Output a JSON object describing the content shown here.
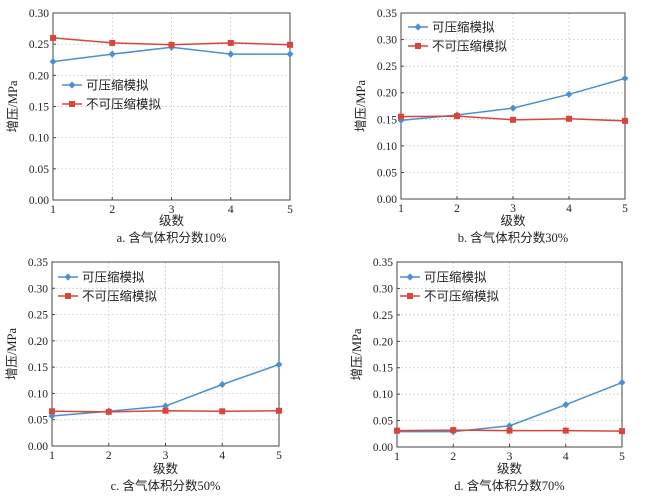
{
  "chart_data": [
    {
      "type": "line",
      "caption": "a. 含气体积分数10%",
      "xlabel": "级数",
      "ylabel": "增压/MPa",
      "x": [
        1,
        2,
        3,
        4,
        5
      ],
      "xticks": [
        "1",
        "2",
        "3",
        "4",
        "5"
      ],
      "ylim": [
        0,
        0.3
      ],
      "yticks": [
        "0.00",
        "0.05",
        "0.10",
        "0.15",
        "0.20",
        "0.25",
        "0.30"
      ],
      "grid": true,
      "legend_position": "upper-left-middle",
      "series": [
        {
          "name": "可压缩模拟",
          "color": "#4a90d0",
          "marker": "diamond",
          "values": [
            0.222,
            0.234,
            0.245,
            0.234,
            0.234
          ]
        },
        {
          "name": "不可压缩模拟",
          "color": "#d9453b",
          "marker": "square",
          "values": [
            0.26,
            0.252,
            0.249,
            0.252,
            0.249
          ]
        }
      ]
    },
    {
      "type": "line",
      "caption": "b. 含气体积分数30%",
      "xlabel": "级数",
      "ylabel": "增压/MPa",
      "x": [
        1,
        2,
        3,
        4,
        5
      ],
      "xticks": [
        "1",
        "2",
        "3",
        "4",
        "5"
      ],
      "ylim": [
        0,
        0.35
      ],
      "yticks": [
        "0.00",
        "0.05",
        "0.10",
        "0.15",
        "0.20",
        "0.25",
        "0.30",
        "0.35"
      ],
      "grid": true,
      "legend_position": "top-left",
      "series": [
        {
          "name": "可压缩模拟",
          "color": "#4a90d0",
          "marker": "diamond",
          "values": [
            0.148,
            0.158,
            0.171,
            0.197,
            0.227
          ]
        },
        {
          "name": "不可压缩模拟",
          "color": "#d9453b",
          "marker": "square",
          "values": [
            0.155,
            0.156,
            0.149,
            0.151,
            0.147
          ]
        }
      ]
    },
    {
      "type": "line",
      "caption": "c. 含气体积分数50%",
      "xlabel": "级数",
      "ylabel": "增压/MPa",
      "x": [
        1,
        2,
        3,
        4,
        5
      ],
      "xticks": [
        "1",
        "2",
        "3",
        "4",
        "5"
      ],
      "ylim": [
        0,
        0.35
      ],
      "yticks": [
        "0.00",
        "0.05",
        "0.10",
        "0.15",
        "0.20",
        "0.25",
        "0.30",
        "0.35"
      ],
      "grid": true,
      "legend_position": "top-left",
      "series": [
        {
          "name": "可压缩模拟",
          "color": "#4a90d0",
          "marker": "diamond",
          "values": [
            0.057,
            0.066,
            0.076,
            0.117,
            0.155
          ]
        },
        {
          "name": "不可压缩模拟",
          "color": "#d9453b",
          "marker": "square",
          "values": [
            0.066,
            0.065,
            0.067,
            0.066,
            0.067
          ]
        }
      ]
    },
    {
      "type": "line",
      "caption": "d. 含气体积分数70%",
      "xlabel": "级数",
      "ylabel": "增压/MPa",
      "x": [
        1,
        2,
        3,
        4,
        5
      ],
      "xticks": [
        "1",
        "2",
        "3",
        "4",
        "5"
      ],
      "ylim": [
        0,
        0.35
      ],
      "yticks": [
        "0.00",
        "0.05",
        "0.10",
        "0.15",
        "0.20",
        "0.25",
        "0.30",
        "0.35"
      ],
      "grid": true,
      "legend_position": "top-left",
      "series": [
        {
          "name": "可压缩模拟",
          "color": "#4a90d0",
          "marker": "diamond",
          "values": [
            0.029,
            0.029,
            0.04,
            0.08,
            0.122
          ]
        },
        {
          "name": "不可压缩模拟",
          "color": "#d9453b",
          "marker": "square",
          "values": [
            0.031,
            0.032,
            0.031,
            0.031,
            0.03
          ]
        }
      ]
    }
  ]
}
